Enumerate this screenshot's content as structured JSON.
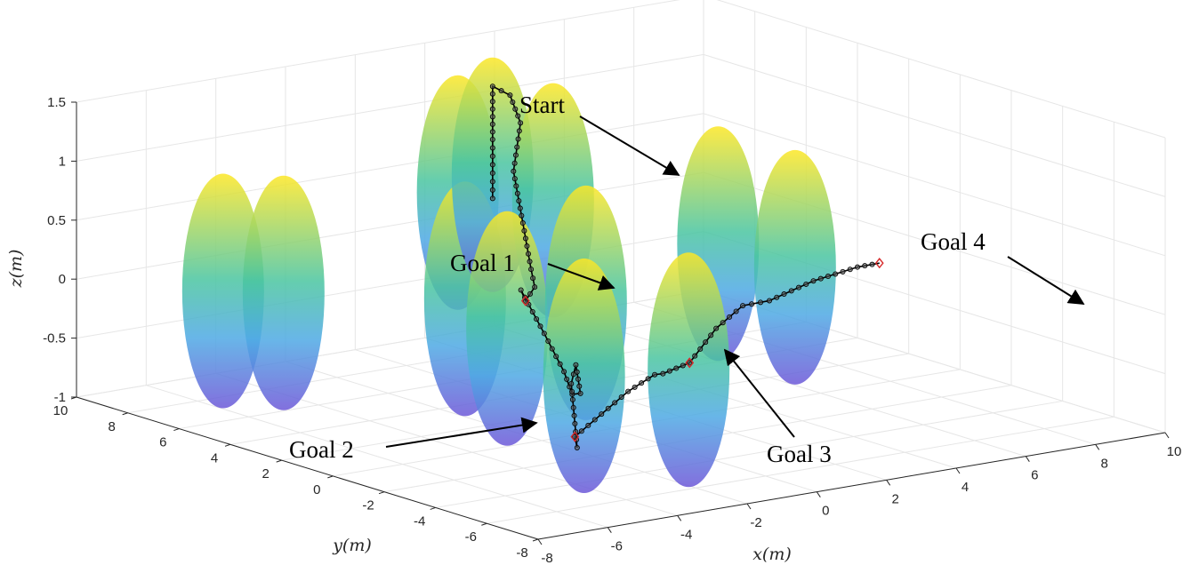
{
  "chart_data": {
    "type": "scatter",
    "projection": "3d",
    "grid": true,
    "xlabel": "x(m)",
    "ylabel": "y(m)",
    "zlabel": "z(m)",
    "xlim": [
      -8,
      10
    ],
    "ylim": [
      -8,
      10
    ],
    "zlim": [
      -1,
      1.5
    ],
    "x_ticks": [
      "-8",
      "-6",
      "-4",
      "-2",
      "0",
      "2",
      "4",
      "6",
      "8",
      "10"
    ],
    "y_ticks": [
      "-8",
      "-6",
      "-4",
      "-2",
      "0",
      "2",
      "4",
      "6",
      "8",
      "10"
    ],
    "z_ticks": [
      "-1",
      "-0.5",
      "0",
      "0.5",
      "1",
      "1.5"
    ],
    "colormap": [
      "#fde725",
      "#4ac5a0",
      "#4ea9e4",
      "#6c57d8"
    ],
    "trajectory_color": "#000000",
    "goal_marker_color": "#d62728",
    "obstacles": [
      {
        "x": -6,
        "y": 7,
        "z": 0.0
      },
      {
        "x": -5,
        "y": 6,
        "z": 0.0
      },
      {
        "x": -2,
        "y": 3,
        "z": 0.0
      },
      {
        "x": 0,
        "y": 6,
        "z": 0.6
      },
      {
        "x": 1,
        "y": 6,
        "z": 0.7
      },
      {
        "x": 2,
        "y": 5,
        "z": 0.5
      },
      {
        "x": -3,
        "y": -3,
        "z": -0.2
      },
      {
        "x": -3,
        "y": 0,
        "z": 0.0
      },
      {
        "x": 0,
        "y": -3,
        "z": -0.3
      },
      {
        "x": 0,
        "y": 1,
        "z": 0.0
      },
      {
        "x": 6,
        "y": 1,
        "z": 0.0
      },
      {
        "x": 6,
        "y": 4,
        "z": 0.0
      }
    ],
    "trajectory": [
      {
        "x": 1,
        "y": 6,
        "z": 0.5
      },
      {
        "x": 1,
        "y": 6,
        "z": 1.0
      },
      {
        "x": 1,
        "y": 6,
        "z": 1.45
      },
      {
        "x": 1.5,
        "y": 6,
        "z": 1.35
      },
      {
        "x": 1.8,
        "y": 6,
        "z": 1.1
      },
      {
        "x": 1.6,
        "y": 6,
        "z": 0.7
      },
      {
        "x": 1.5,
        "y": 5.5,
        "z": 0.3
      },
      {
        "x": 1.0,
        "y": 4.5,
        "z": 0.0
      },
      {
        "x": 0.0,
        "y": 3.0,
        "z": 0.0
      },
      {
        "x": -1.0,
        "y": 2.0,
        "z": 0.0
      },
      {
        "x": -1.5,
        "y": 1.5,
        "z": 0.15
      },
      {
        "x": -1.2,
        "y": 1.0,
        "z": -0.2
      },
      {
        "x": -1.0,
        "y": 0.5,
        "z": -0.5
      },
      {
        "x": -1.5,
        "y": -0.5,
        "z": -0.6
      },
      {
        "x": -2.0,
        "y": -1.5,
        "z": -0.5
      },
      {
        "x": -2.5,
        "y": -2.0,
        "z": -0.2
      },
      {
        "x": -3.0,
        "y": -2.5,
        "z": -0.3
      },
      {
        "x": -3.2,
        "y": -3.0,
        "z": -0.8
      },
      {
        "x": -4.0,
        "y": -4.0,
        "z": -0.6
      },
      {
        "x": -2.5,
        "y": -3.0,
        "z": -0.55
      },
      {
        "x": -1.0,
        "y": -2.0,
        "z": -0.5
      },
      {
        "x": 0.5,
        "y": -1.0,
        "z": -0.5
      },
      {
        "x": 0.0,
        "y": -2.0,
        "z": -0.4
      },
      {
        "x": 1.5,
        "y": -1.0,
        "z": -0.45
      },
      {
        "x": 3.0,
        "y": 0.0,
        "z": -0.3
      },
      {
        "x": 4.5,
        "y": 1.0,
        "z": -0.25
      },
      {
        "x": 6.0,
        "y": 2.0,
        "z": -0.35
      },
      {
        "x": 8.0,
        "y": 3.0,
        "z": -0.35
      },
      {
        "x": 10.0,
        "y": 4.0,
        "z": -0.4
      },
      {
        "x": 11.0,
        "y": 4.5,
        "z": -0.45
      }
    ],
    "goals": [
      {
        "x": -1.0,
        "y": 2.0,
        "z": 0.0
      },
      {
        "x": -4.0,
        "y": -4.0,
        "z": -0.6
      },
      {
        "x": 1.5,
        "y": -1.0,
        "z": -0.45
      },
      {
        "x": 11.0,
        "y": 4.5,
        "z": -0.45
      }
    ],
    "annotations": [
      "Start",
      "Goal 1",
      "Goal 2",
      "Goal 3",
      "Goal 4"
    ]
  }
}
